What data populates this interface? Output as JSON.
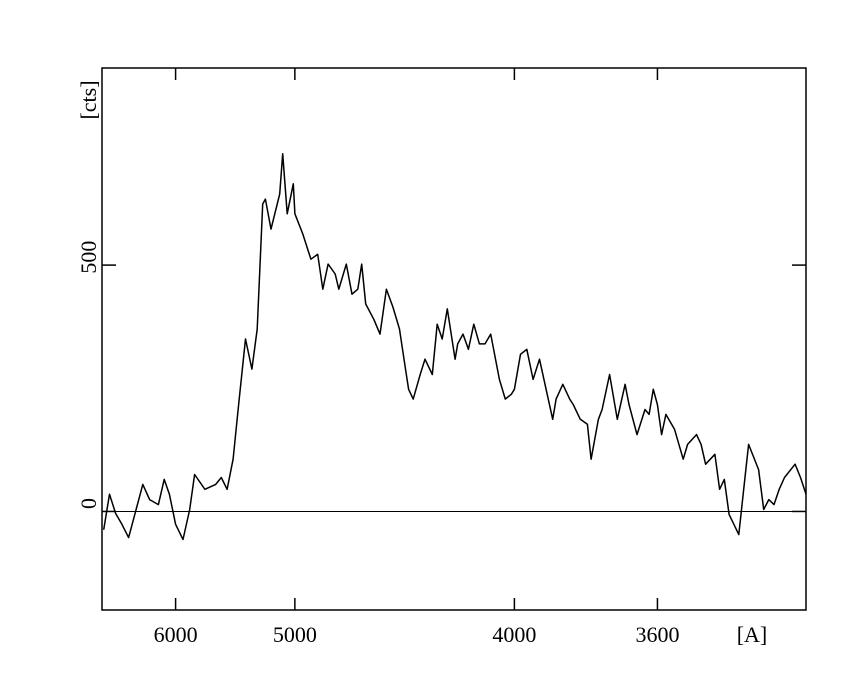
{
  "chart_data": {
    "type": "line",
    "x_label": "[A]",
    "y_label": "[cts]",
    "xscale": "inverse-square",
    "xlim": [
      7030,
      3290
    ],
    "xticks": [
      6000,
      5000,
      4000,
      3600
    ],
    "ylim": [
      -200,
      900
    ],
    "yticks": [
      0,
      500
    ],
    "hline": 0,
    "x": [
      7000,
      6900,
      6800,
      6700,
      6600,
      6510,
      6400,
      6310,
      6200,
      6130,
      6070,
      6000,
      5920,
      5850,
      5800,
      5700,
      5600,
      5550,
      5500,
      5450,
      5400,
      5350,
      5300,
      5260,
      5220,
      5200,
      5160,
      5100,
      5080,
      5050,
      5010,
      5000,
      4950,
      4900,
      4860,
      4830,
      4800,
      4760,
      4740,
      4700,
      4670,
      4640,
      4620,
      4600,
      4560,
      4530,
      4500,
      4470,
      4440,
      4420,
      4400,
      4380,
      4350,
      4330,
      4300,
      4280,
      4260,
      4240,
      4210,
      4200,
      4180,
      4160,
      4140,
      4120,
      4100,
      4080,
      4050,
      4030,
      4010,
      4000,
      3980,
      3960,
      3940,
      3920,
      3900,
      3880,
      3870,
      3850,
      3830,
      3820,
      3800,
      3780,
      3770,
      3750,
      3740,
      3720,
      3700,
      3680,
      3670,
      3650,
      3630,
      3620,
      3610,
      3600,
      3590,
      3580,
      3560,
      3540,
      3530,
      3510,
      3500,
      3490,
      3470,
      3460,
      3450,
      3440,
      3420,
      3410,
      3400,
      3380,
      3370,
      3360,
      3350,
      3340,
      3330,
      3310,
      3300,
      3290
    ],
    "series": [
      {
        "color": "#000000",
        "values": [
          -37,
          35,
          -4,
          -26,
          -53,
          -6,
          55,
          24,
          14,
          65,
          35,
          -26,
          -57,
          4,
          75,
          45,
          55,
          69,
          45,
          106,
          228,
          350,
          289,
          370,
          624,
          634,
          573,
          644,
          726,
          604,
          665,
          604,
          563,
          512,
          522,
          451,
          502,
          482,
          451,
          502,
          441,
          451,
          502,
          421,
          390,
          360,
          451,
          415,
          370,
          309,
          248,
          228,
          278,
          309,
          278,
          380,
          350,
          411,
          309,
          340,
          360,
          329,
          380,
          340,
          340,
          360,
          268,
          228,
          238,
          248,
          319,
          329,
          268,
          309,
          248,
          187,
          228,
          258,
          228,
          217,
          187,
          177,
          106,
          187,
          207,
          278,
          187,
          258,
          217,
          156,
          207,
          197,
          248,
          217,
          156,
          197,
          167,
          106,
          136,
          156,
          136,
          96,
          116,
          45,
          65,
          -6,
          -47,
          45,
          136,
          85,
          4,
          24,
          14,
          45,
          69,
          96,
          69,
          35
        ]
      }
    ]
  }
}
